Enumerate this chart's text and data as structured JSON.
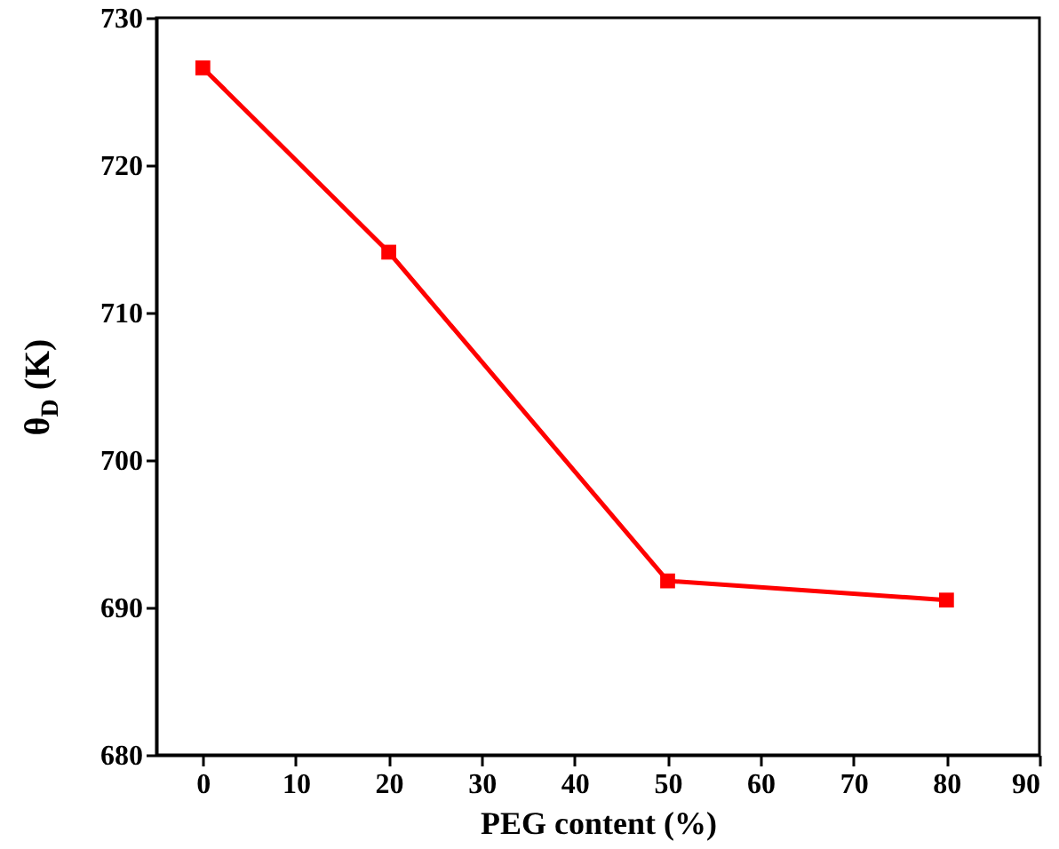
{
  "chart_data": {
    "type": "line",
    "xlabel": "PEG content (%)",
    "ylabel": "θ$_{D}$ (K)",
    "x": [
      0,
      20,
      50,
      80
    ],
    "series": [
      {
        "color": "#ff0000",
        "values": [
          726.6,
          714.1,
          691.8,
          690.5
        ]
      }
    ],
    "xlim": [
      -5,
      90
    ],
    "xticks": [
      0,
      10,
      20,
      30,
      40,
      50,
      60,
      70,
      80,
      90
    ],
    "ylim": [
      680,
      730
    ],
    "yticks": [
      680,
      690,
      700,
      710,
      720,
      730
    ],
    "grid": false,
    "marker": "square",
    "line_style": "solid"
  }
}
